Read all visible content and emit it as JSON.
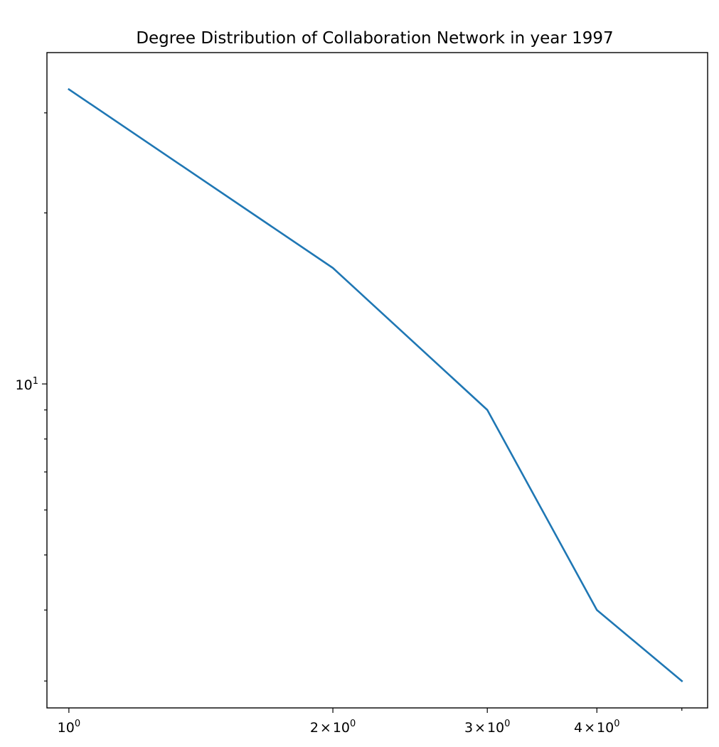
{
  "chart_data": {
    "type": "line",
    "title": "Degree Distribution of Collaboration Network in year 1997",
    "xlabel": "",
    "ylabel": "",
    "xscale": "log",
    "yscale": "log",
    "grid": false,
    "xlim": [
      0.944,
      5.35
    ],
    "ylim": [
      2.69,
      38.3
    ],
    "x_ticks": [
      {
        "value": 1,
        "base": "10",
        "exp": "0",
        "mult": ""
      },
      {
        "value": 2,
        "base": "10",
        "exp": "0",
        "mult": "2"
      },
      {
        "value": 3,
        "base": "10",
        "exp": "0",
        "mult": "3"
      },
      {
        "value": 4,
        "base": "10",
        "exp": "0",
        "mult": "4"
      }
    ],
    "x_minor_ticks": [
      5
    ],
    "y_ticks": [
      {
        "value": 10,
        "base": "10",
        "exp": "1",
        "mult": ""
      }
    ],
    "y_minor_ticks": [
      3,
      4,
      5,
      6,
      7,
      8,
      9,
      20,
      30
    ],
    "series": [
      {
        "color": "#1f77b4",
        "x": [
          1,
          2,
          3,
          4,
          5
        ],
        "y": [
          33,
          16,
          9,
          4,
          3
        ]
      }
    ]
  }
}
